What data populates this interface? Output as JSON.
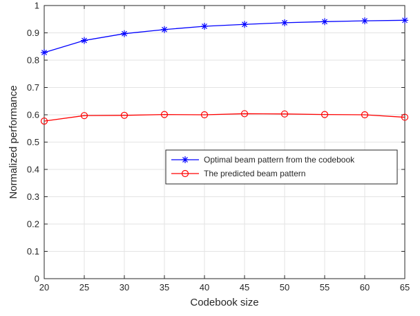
{
  "chart_data": {
    "type": "line",
    "title": "",
    "xlabel": "Codebook size",
    "ylabel": "Normalized  performance",
    "x": [
      20,
      25,
      30,
      35,
      40,
      45,
      50,
      55,
      60,
      65
    ],
    "xlim": [
      20,
      65
    ],
    "ylim": [
      0,
      1
    ],
    "xticks": [
      "20",
      "25",
      "30",
      "35",
      "40",
      "45",
      "50",
      "55",
      "60",
      "65"
    ],
    "yticks": [
      "0",
      "0.1",
      "0.2",
      "0.3",
      "0.4",
      "0.5",
      "0.6",
      "0.7",
      "0.8",
      "0.9",
      "1"
    ],
    "grid": true,
    "legend_position": "center-right",
    "series": [
      {
        "name": "Optimal beam pattern from the codebook",
        "color": "#0000ff",
        "marker": "asterisk",
        "values": [
          0.828,
          0.872,
          0.897,
          0.912,
          0.924,
          0.931,
          0.937,
          0.941,
          0.944,
          0.946
        ]
      },
      {
        "name": "The predicted beam pattern",
        "color": "#ff0000",
        "marker": "circle",
        "values": [
          0.577,
          0.597,
          0.598,
          0.601,
          0.6,
          0.604,
          0.603,
          0.601,
          0.6,
          0.591
        ]
      }
    ]
  }
}
